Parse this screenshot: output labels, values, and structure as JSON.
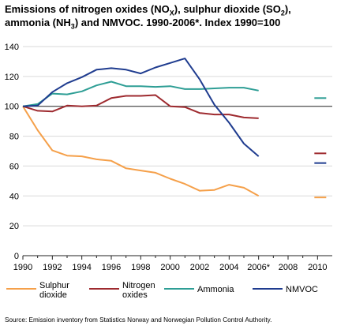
{
  "title_parts": [
    "Emissions of nitrogen oxides (NO",
    "X",
    "), sulphur dioxide (SO",
    "2",
    "), ammonia (NH",
    "3",
    ") and NMVOC. 1990-2006*. Index 1990=100"
  ],
  "source": "Source: Emission inventory from Statistics Norway and Norwegian Pollution Control Authority.",
  "chart_data": {
    "type": "line",
    "title": "Emissions of nitrogen oxides (NOX), sulphur dioxide (SO2), ammonia (NH3) and NMVOC. 1990-2006*. Index 1990=100",
    "xlabel": "",
    "ylabel": "",
    "xlim": [
      1990,
      2011
    ],
    "ylim": [
      0,
      140
    ],
    "x_ticks": [
      {
        "value": 1990,
        "label": "1990"
      },
      {
        "value": 1992,
        "label": "1992"
      },
      {
        "value": 1994,
        "label": "1994"
      },
      {
        "value": 1996,
        "label": "1996"
      },
      {
        "value": 1998,
        "label": "1998"
      },
      {
        "value": 2000,
        "label": "2000"
      },
      {
        "value": 2002,
        "label": "2002"
      },
      {
        "value": 2004,
        "label": "2004"
      },
      {
        "value": 2006,
        "label": "2006*"
      },
      {
        "value": 2008,
        "label": "2008"
      },
      {
        "value": 2010,
        "label": "2010"
      }
    ],
    "y_ticks": [
      0,
      20,
      40,
      60,
      80,
      100,
      120,
      140
    ],
    "grid": true,
    "reference_line": 100,
    "legend_position": "bottom",
    "x": [
      1990,
      1991,
      1992,
      1993,
      1994,
      1995,
      1996,
      1997,
      1998,
      1999,
      2000,
      2001,
      2002,
      2003,
      2004,
      2005,
      2006
    ],
    "series": [
      {
        "name": "Sulphur dioxide",
        "legend_lines": [
          "Sulphur",
          "dioxide"
        ],
        "color": "#f5a04a",
        "values": [
          100,
          84,
          70.5,
          67,
          66.5,
          64.5,
          63.5,
          58.5,
          57,
          55.5,
          51.5,
          48,
          43.5,
          44,
          47.5,
          45.5,
          40
        ],
        "target_2010": 39
      },
      {
        "name": "Nitrogen oxides",
        "legend_lines": [
          "Nitrogen",
          "oxides"
        ],
        "color": "#9e2a2f",
        "values": [
          100,
          97,
          96.5,
          100.5,
          100,
          100.5,
          105.5,
          107,
          107,
          107.5,
          100,
          99.5,
          95.5,
          94.5,
          94.5,
          92.5,
          92
        ],
        "target_2010": 68.5
      },
      {
        "name": "Ammonia",
        "legend_lines": [
          "Ammonia"
        ],
        "color": "#2e9e95",
        "values": [
          100,
          101.5,
          108.5,
          108,
          110,
          114,
          116.5,
          113.5,
          113.5,
          113,
          113.5,
          111.5,
          111.5,
          112,
          112.5,
          112.5,
          110.5
        ],
        "target_2010": 105.5
      },
      {
        "name": "NMVOC",
        "legend_lines": [
          "NMVOC"
        ],
        "color": "#1f3c8f",
        "values": [
          100,
          100.5,
          109.5,
          115.5,
          119.5,
          124.5,
          125.5,
          124.5,
          122,
          126,
          129,
          132,
          118,
          101,
          89,
          75,
          66.5
        ],
        "target_2010": 62
      }
    ]
  }
}
